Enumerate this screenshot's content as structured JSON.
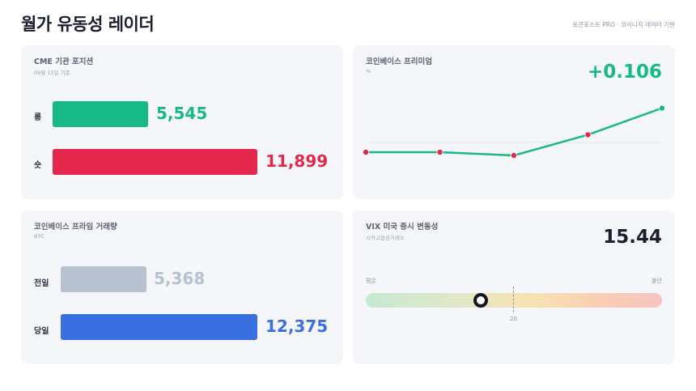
{
  "header": {
    "title": "월가 유동성 레이더",
    "brand": "토큰포스트 PRO · 코이니지 데이터 기반"
  },
  "cme": {
    "title": "CME 기관 포지션",
    "subtitle": "09월 15일 기준",
    "long_label": "롱",
    "long_value": "5,545",
    "short_label": "숏",
    "short_value": "11,899",
    "long_color": "#17b985",
    "short_color": "#e3284b"
  },
  "premium": {
    "title": "코인베이스 프리미엄",
    "unit": "%",
    "value": "+0.106",
    "color": "#17b985"
  },
  "volume": {
    "title": "코인베이스 프라임 거래량",
    "unit": "BTC",
    "prev_label": "전일",
    "prev_value": "5,368",
    "today_label": "당일",
    "today_value": "12,375",
    "prev_color": "#b8c1cf",
    "today_color": "#3a6fe0"
  },
  "vix": {
    "title": "VIX 미국 증시 변동성",
    "subtitle": "시카고옵션거래소",
    "value": "15.44",
    "low_label": "평온",
    "high_label": "불안",
    "ref_label": "20"
  },
  "chart_data": {
    "type": "line",
    "series": [
      {
        "values": [
          -0.03,
          -0.03,
          -0.04,
          0.024,
          0.106
        ]
      }
    ],
    "point_colors": [
      "#e3284b",
      "#e3284b",
      "#e3284b",
      "#e3284b",
      "#17b985"
    ],
    "line_color": "#17b985",
    "ylim": [
      -0.1,
      0.15
    ],
    "reference_line": 0,
    "grid": false
  }
}
